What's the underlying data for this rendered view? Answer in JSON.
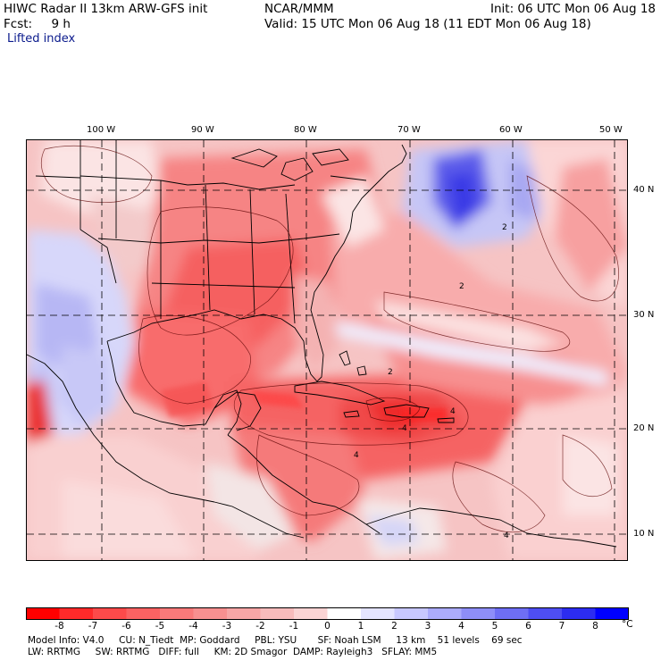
{
  "header": {
    "model": "HIWC Radar II 13km ARW-GFS init",
    "fcst_label": "Fcst:",
    "fcst_value": "9 h",
    "org": "NCAR/MMM",
    "init": "Init: 06 UTC Mon 06 Aug 18",
    "valid": "Valid: 15 UTC Mon 06 Aug 18 (11 EDT Mon 06 Aug 18)"
  },
  "field_label": "Lifted index",
  "longitude_labels": [
    {
      "text": "100 W",
      "lon": -100
    },
    {
      "text": "90 W",
      "lon": -90
    },
    {
      "text": "80 W",
      "lon": -80
    },
    {
      "text": "70 W",
      "lon": -70
    },
    {
      "text": "60 W",
      "lon": -60
    },
    {
      "text": "50 W",
      "lon": -50
    }
  ],
  "latitude_labels": [
    {
      "text": "40 N",
      "lat": 40
    },
    {
      "text": "30 N",
      "lat": 30
    },
    {
      "text": "20 N",
      "lat": 20
    },
    {
      "text": "10 N",
      "lat": 10
    }
  ],
  "contour_labels": [
    "2",
    "2",
    "2",
    "4",
    "4",
    "4",
    "4"
  ],
  "colorbar": {
    "labels": [
      "-8",
      "-7",
      "-6",
      "-5",
      "-4",
      "-3",
      "-2",
      "-1",
      "0",
      "1",
      "2",
      "3",
      "4",
      "5",
      "6",
      "7",
      "8"
    ],
    "unit": "°C",
    "colors": [
      "#ff0000",
      "#ff2a2a",
      "#fd4a4a",
      "#fb6262",
      "#f97a7a",
      "#f89090",
      "#f7a6a6",
      "#f8bcbc",
      "#fbd4d4",
      "#ffffff",
      "#e4e4ff",
      "#c8c8ff",
      "#ababfc",
      "#8e8ef8",
      "#6e6ef4",
      "#4e4ef2",
      "#2c2cf0",
      "#0000ff"
    ]
  },
  "model_info": {
    "line1": "Model Info: V4.0     CU: N_Tiedt  MP: Goddard     PBL: YSU       SF: Noah LSM     13 km    51 levels    69 sec",
    "line2": "LW: RRTMG     SW: RRTMG   DIFF: full     KM: 2D Smagor  DAMP: Rayleigh3   SFLAY: MM5"
  }
}
